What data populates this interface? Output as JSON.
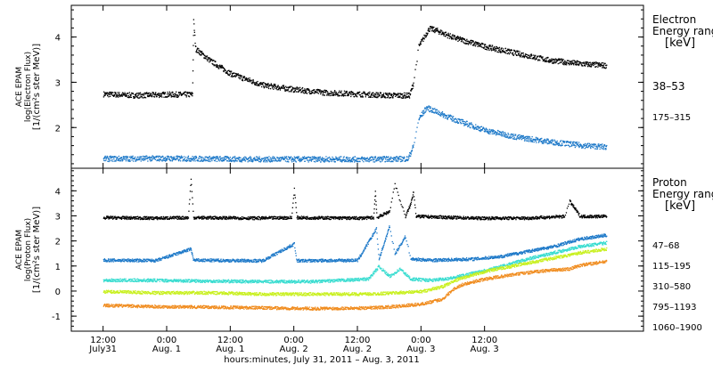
{
  "chart_data": [
    {
      "type": "scatter",
      "panel": "electron",
      "ylabel_lines": [
        "ACE EPAM",
        "log(Electron Flux)",
        "[1/(cm²s ster MeV)]"
      ],
      "ylim": [
        1.1,
        4.7
      ],
      "yticks": [
        2,
        3,
        4
      ],
      "legend_title_lines": [
        "Electron",
        "Energy range",
        "[keV]"
      ],
      "series": [
        {
          "name": "38–53",
          "color": "#000000",
          "points": [
            [
              0,
              2.75
            ],
            [
              6,
              2.72
            ],
            [
              12,
              2.74
            ],
            [
              16.8,
              2.74
            ],
            [
              17.0,
              4.35
            ],
            [
              17.4,
              3.75
            ],
            [
              20,
              3.5
            ],
            [
              24,
              3.2
            ],
            [
              30,
              2.95
            ],
            [
              36,
              2.85
            ],
            [
              42,
              2.78
            ],
            [
              48,
              2.75
            ],
            [
              54,
              2.72
            ],
            [
              57.8,
              2.72
            ],
            [
              58.5,
              3.0
            ],
            [
              59.5,
              3.8
            ],
            [
              61.5,
              4.2
            ],
            [
              63,
              4.15
            ],
            [
              66,
              4.0
            ],
            [
              72,
              3.8
            ],
            [
              78,
              3.65
            ],
            [
              84,
              3.5
            ],
            [
              90,
              3.42
            ],
            [
              95,
              3.38
            ]
          ]
        },
        {
          "name": "175–315",
          "color": "#1c78c8",
          "points": [
            [
              0,
              1.32
            ],
            [
              10,
              1.33
            ],
            [
              20,
              1.32
            ],
            [
              30,
              1.31
            ],
            [
              40,
              1.31
            ],
            [
              50,
              1.31
            ],
            [
              57.5,
              1.32
            ],
            [
              58.5,
              1.6
            ],
            [
              59.5,
              2.2
            ],
            [
              61,
              2.45
            ],
            [
              63,
              2.35
            ],
            [
              66,
              2.2
            ],
            [
              72,
              1.95
            ],
            [
              78,
              1.8
            ],
            [
              84,
              1.7
            ],
            [
              90,
              1.62
            ],
            [
              95,
              1.58
            ]
          ]
        }
      ]
    },
    {
      "type": "scatter",
      "panel": "proton",
      "ylabel_lines": [
        "ACE EPAM",
        "log(Proton Flux)",
        "[1/(cm²s ster MeV)]"
      ],
      "ylim": [
        -1.6,
        4.9
      ],
      "yticks": [
        -1,
        0,
        1,
        2,
        3,
        4
      ],
      "legend_title_lines": [
        "Proton",
        "Energy range",
        "[keV]"
      ],
      "series": [
        {
          "name": "47–68",
          "color": "#000000",
          "points": [
            [
              0,
              2.95
            ],
            [
              10,
              2.93
            ],
            [
              16,
              2.95
            ],
            [
              16.5,
              4.5
            ],
            [
              17,
              2.95
            ],
            [
              30,
              2.93
            ],
            [
              35.5,
              2.95
            ],
            [
              36,
              4.1
            ],
            [
              36.5,
              2.95
            ],
            [
              48,
              2.93
            ],
            [
              51,
              2.95
            ],
            [
              51.3,
              4.0
            ],
            [
              51.6,
              2.95
            ],
            [
              54,
              3.2
            ],
            [
              55,
              4.3
            ],
            [
              56,
              3.6
            ],
            [
              57,
              3.0
            ],
            [
              58,
              3.5
            ],
            [
              58.5,
              4.0
            ],
            [
              59,
              3.0
            ],
            [
              70,
              2.93
            ],
            [
              80,
              2.93
            ],
            [
              87,
              3.0
            ],
            [
              88,
              3.6
            ],
            [
              89,
              3.3
            ],
            [
              90,
              3.0
            ],
            [
              95,
              3.0
            ]
          ]
        },
        {
          "name": "115–195",
          "color": "#1c78c8",
          "points": [
            [
              0,
              1.25
            ],
            [
              10,
              1.24
            ],
            [
              16.5,
              1.7
            ],
            [
              17,
              1.25
            ],
            [
              30,
              1.23
            ],
            [
              36,
              1.9
            ],
            [
              36.5,
              1.23
            ],
            [
              48,
              1.25
            ],
            [
              51.5,
              2.5
            ],
            [
              52,
              1.3
            ],
            [
              54,
              2.6
            ],
            [
              55,
              1.5
            ],
            [
              57,
              2.2
            ],
            [
              58,
              1.3
            ],
            [
              62,
              1.25
            ],
            [
              70,
              1.3
            ],
            [
              75,
              1.4
            ],
            [
              80,
              1.6
            ],
            [
              85,
              1.8
            ],
            [
              90,
              2.1
            ],
            [
              95,
              2.25
            ]
          ]
        },
        {
          "name": "310–580",
          "color": "#38dcd0",
          "points": [
            [
              0,
              0.45
            ],
            [
              10,
              0.45
            ],
            [
              20,
              0.42
            ],
            [
              30,
              0.4
            ],
            [
              40,
              0.4
            ],
            [
              50,
              0.5
            ],
            [
              52,
              1.0
            ],
            [
              54,
              0.6
            ],
            [
              56,
              0.9
            ],
            [
              58,
              0.5
            ],
            [
              62,
              0.45
            ],
            [
              66,
              0.55
            ],
            [
              70,
              0.75
            ],
            [
              75,
              1.0
            ],
            [
              80,
              1.3
            ],
            [
              85,
              1.55
            ],
            [
              90,
              1.8
            ],
            [
              95,
              1.95
            ]
          ]
        },
        {
          "name": "795–1193",
          "color": "#c8f01e",
          "points": [
            [
              0,
              0.0
            ],
            [
              10,
              -0.05
            ],
            [
              20,
              -0.05
            ],
            [
              30,
              -0.1
            ],
            [
              40,
              -0.1
            ],
            [
              50,
              -0.1
            ],
            [
              55,
              -0.05
            ],
            [
              60,
              0.0
            ],
            [
              64,
              0.2
            ],
            [
              67,
              0.5
            ],
            [
              72,
              0.8
            ],
            [
              78,
              1.05
            ],
            [
              84,
              1.3
            ],
            [
              90,
              1.55
            ],
            [
              95,
              1.7
            ]
          ]
        },
        {
          "name": "1060–1900",
          "color": "#f08c1e",
          "points": [
            [
              0,
              -0.55
            ],
            [
              10,
              -0.6
            ],
            [
              20,
              -0.62
            ],
            [
              30,
              -0.65
            ],
            [
              40,
              -0.68
            ],
            [
              50,
              -0.65
            ],
            [
              55,
              -0.6
            ],
            [
              60,
              -0.5
            ],
            [
              64,
              -0.3
            ],
            [
              66,
              0.1
            ],
            [
              68,
              0.3
            ],
            [
              72,
              0.5
            ],
            [
              78,
              0.7
            ],
            [
              84,
              0.85
            ],
            [
              88,
              0.9
            ],
            [
              90,
              1.05
            ],
            [
              95,
              1.2
            ]
          ]
        }
      ]
    }
  ],
  "x_axis": {
    "xlim": [
      -6,
      102
    ],
    "ticks": [
      {
        "hour": 0,
        "line1": "12:00",
        "line2": "July31"
      },
      {
        "hour": 12,
        "line1": "0:00",
        "line2": "Aug. 1"
      },
      {
        "hour": 24,
        "line1": "12:00",
        "line2": "Aug. 1"
      },
      {
        "hour": 36,
        "line1": "0:00",
        "line2": "Aug. 2"
      },
      {
        "hour": 48,
        "line1": "12:00",
        "line2": "Aug. 2"
      },
      {
        "hour": 60,
        "line1": "0:00",
        "line2": "Aug. 3"
      },
      {
        "hour": 72,
        "line1": "12:00",
        "line2": "Aug. 3"
      }
    ],
    "xlabel": "hours:minutes, July 31, 2011 – Aug. 3, 2011"
  }
}
